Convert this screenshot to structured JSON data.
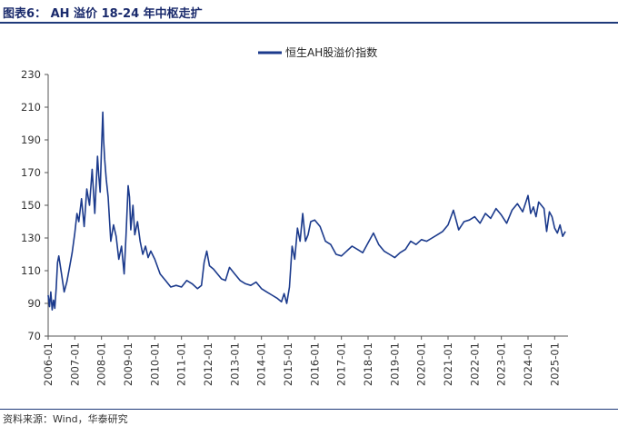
{
  "figure": {
    "title": "图表6：  AH 溢价 18-24 年中枢走扩",
    "source": "资料来源：Wind，华泰研究"
  },
  "colors": {
    "line": "#1b3a8c",
    "axis": "#555555",
    "rule": "#1f3a7a"
  },
  "chart_data": {
    "type": "line",
    "title": "",
    "xlabel": "",
    "ylabel": "",
    "ylim": [
      70,
      230
    ],
    "yticks": [
      70,
      90,
      110,
      130,
      150,
      170,
      190,
      210,
      230
    ],
    "xlim": [
      2006.0,
      2025.5
    ],
    "xtick_labels": [
      "2006-01",
      "2007-01",
      "2008-01",
      "2009-01",
      "2010-01",
      "2011-01",
      "2012-01",
      "2013-01",
      "2014-01",
      "2015-01",
      "2016-01",
      "2017-01",
      "2018-01",
      "2019-01",
      "2020-01",
      "2021-01",
      "2022-01",
      "2023-01",
      "2024-01",
      "2025-01"
    ],
    "legend": {
      "position": "top-center"
    },
    "series": [
      {
        "name": "恒生AH股溢价指数",
        "x": [
          2006.0,
          2006.05,
          2006.1,
          2006.15,
          2006.2,
          2006.25,
          2006.3,
          2006.35,
          2006.4,
          2006.5,
          2006.6,
          2006.7,
          2006.8,
          2006.9,
          2007.0,
          2007.08,
          2007.15,
          2007.25,
          2007.35,
          2007.45,
          2007.55,
          2007.65,
          2007.75,
          2007.85,
          2007.9,
          2007.95,
          2008.0,
          2008.03,
          2008.05,
          2008.08,
          2008.12,
          2008.18,
          2008.25,
          2008.35,
          2008.45,
          2008.55,
          2008.65,
          2008.75,
          2008.85,
          2008.92,
          2009.0,
          2009.05,
          2009.1,
          2009.18,
          2009.25,
          2009.35,
          2009.45,
          2009.55,
          2009.65,
          2009.75,
          2009.85,
          2010.0,
          2010.2,
          2010.4,
          2010.6,
          2010.8,
          2011.0,
          2011.2,
          2011.4,
          2011.6,
          2011.75,
          2011.85,
          2011.95,
          2012.05,
          2012.2,
          2012.35,
          2012.5,
          2012.65,
          2012.8,
          2013.0,
          2013.2,
          2013.4,
          2013.6,
          2013.8,
          2014.0,
          2014.2,
          2014.4,
          2014.6,
          2014.75,
          2014.85,
          2014.95,
          2015.05,
          2015.15,
          2015.25,
          2015.35,
          2015.45,
          2015.55,
          2015.65,
          2015.75,
          2015.85,
          2016.0,
          2016.2,
          2016.4,
          2016.6,
          2016.8,
          2017.0,
          2017.2,
          2017.4,
          2017.6,
          2017.8,
          2018.0,
          2018.2,
          2018.4,
          2018.6,
          2018.8,
          2019.0,
          2019.2,
          2019.4,
          2019.6,
          2019.8,
          2020.0,
          2020.2,
          2020.4,
          2020.6,
          2020.8,
          2021.0,
          2021.2,
          2021.4,
          2021.6,
          2021.8,
          2022.0,
          2022.2,
          2022.4,
          2022.6,
          2022.8,
          2023.0,
          2023.2,
          2023.4,
          2023.6,
          2023.8,
          2024.0,
          2024.1,
          2024.2,
          2024.3,
          2024.4,
          2024.5,
          2024.6,
          2024.7,
          2024.8,
          2024.9,
          2025.0,
          2025.1,
          2025.2,
          2025.3,
          2025.4
        ],
        "values": [
          95,
          88,
          97,
          86,
          92,
          87,
          99,
          115,
          119,
          108,
          97,
          103,
          112,
          121,
          133,
          145,
          140,
          154,
          137,
          160,
          150,
          172,
          145,
          180,
          168,
          158,
          185,
          197,
          207,
          190,
          178,
          166,
          155,
          128,
          138,
          131,
          117,
          125,
          108,
          132,
          162,
          155,
          135,
          150,
          132,
          140,
          128,
          120,
          125,
          118,
          122,
          117,
          108,
          104,
          100,
          101,
          100,
          104,
          102,
          99,
          101,
          115,
          122,
          113,
          111,
          108,
          105,
          104,
          112,
          108,
          104,
          102,
          101,
          103,
          99,
          97,
          95,
          93,
          91,
          96,
          90,
          100,
          125,
          117,
          136,
          128,
          145,
          128,
          132,
          140,
          141,
          137,
          128,
          126,
          120,
          119,
          122,
          125,
          123,
          121,
          127,
          133,
          126,
          122,
          120,
          118,
          121,
          123,
          128,
          126,
          129,
          128,
          130,
          132,
          134,
          138,
          147,
          135,
          140,
          141,
          143,
          139,
          145,
          142,
          148,
          144,
          139,
          147,
          151,
          146,
          156,
          145,
          149,
          143,
          152,
          150,
          148,
          134,
          146,
          143,
          136,
          133,
          138,
          131,
          134
        ]
      }
    ]
  }
}
